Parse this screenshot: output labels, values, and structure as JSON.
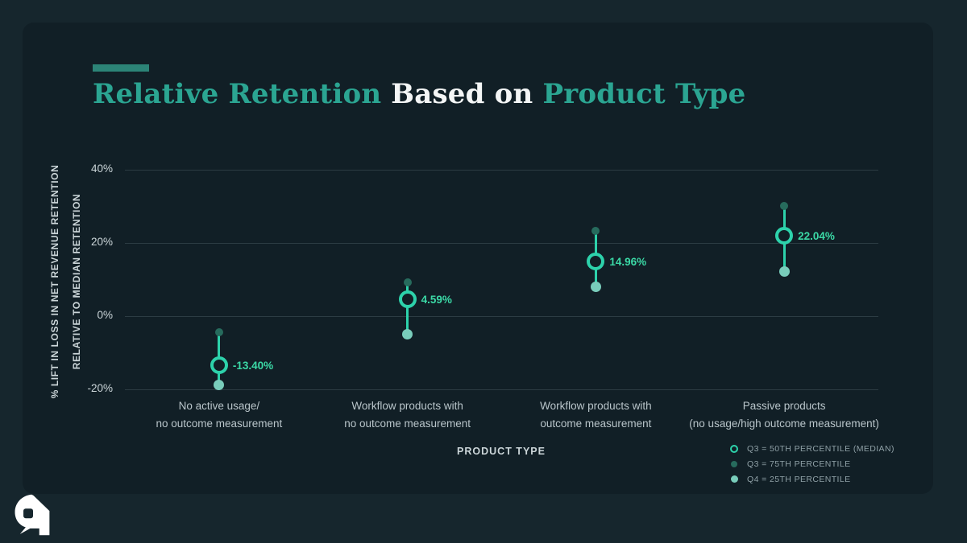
{
  "title": {
    "part1": "Relative Retention ",
    "part2": "Based on ",
    "part3": "Product Type"
  },
  "colors": {
    "background_outer": "#16262d",
    "card": "#111f26",
    "title_teal": "#2ba592",
    "title_white": "#f4f6f6",
    "marker_teal": "#2dd2ab",
    "value_label_green": "#3bd9a6",
    "dot_75th": "#276b5d",
    "dot_25th": "#79cdbb",
    "gridline": "#2c3c43",
    "accent_bar": "#2c8477"
  },
  "chart_data": {
    "type": "scatter",
    "title": "Relative Retention Based on Product Type",
    "xlabel": "PRODUCT TYPE",
    "ylabel_line1": "% LIFT IN LOSS IN NET REVENUE RETENTION",
    "ylabel_line2": "RELATIVE TO MEDIAN RETENTION",
    "ylim": [
      -27,
      44
    ],
    "grid": true,
    "yticks": [
      {
        "value": 40,
        "label": "40%"
      },
      {
        "value": 20,
        "label": "20%"
      },
      {
        "value": 0,
        "label": "0%"
      },
      {
        "value": -20,
        "label": "-20%"
      }
    ],
    "categories": [
      [
        "No active usage/",
        "no outcome measurement"
      ],
      [
        "Workflow products with",
        "no outcome measurement"
      ],
      [
        "Workflow products with",
        "outcome measurement"
      ],
      [
        "Passive products",
        "(no usage/high outcome measurement)"
      ]
    ],
    "points": [
      {
        "median": -13.4,
        "median_label": "-13.40%",
        "p75": -4.5,
        "p25": -18.8
      },
      {
        "median": 4.59,
        "median_label": "4.59%",
        "p75": 9.2,
        "p25": -4.9
      },
      {
        "median": 14.96,
        "median_label": "14.96%",
        "p75": 23.3,
        "p25": 8.1
      },
      {
        "median": 22.04,
        "median_label": "22.04%",
        "p75": 30.1,
        "p25": 12.1
      }
    ],
    "legend": [
      {
        "marker": "ring",
        "label": "Q3 = 50TH PERCENTILE (MEDIAN)"
      },
      {
        "marker": "dot-dark",
        "label": "Q3 = 75TH PERCENTILE"
      },
      {
        "marker": "dot-light",
        "label": "Q4 = 25TH PERCENTILE"
      }
    ],
    "legend_position": "bottom-right"
  }
}
